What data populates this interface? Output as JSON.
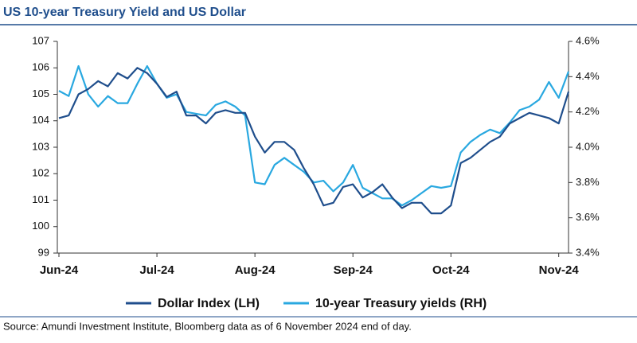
{
  "chart_data": {
    "type": "line",
    "title": "US 10-year Treasury Yield and US Dollar",
    "source": "Source: Amundi Investment Institute, Bloomberg data as of 6 November 2024 end of day.",
    "categories": [
      "Jun-24",
      null,
      null,
      null,
      null,
      null,
      null,
      null,
      null,
      null,
      "Jul-24",
      null,
      null,
      null,
      null,
      null,
      null,
      null,
      null,
      null,
      "Aug-24",
      null,
      null,
      null,
      null,
      null,
      null,
      null,
      null,
      null,
      "Sep-24",
      null,
      null,
      null,
      null,
      null,
      null,
      null,
      null,
      null,
      "Oct-24",
      null,
      null,
      null,
      null,
      null,
      null,
      null,
      null,
      null,
      null,
      "Nov-24",
      null
    ],
    "ylim": [
      99,
      107
    ],
    "yticks": [
      99,
      100,
      101,
      102,
      103,
      104,
      105,
      106,
      107
    ],
    "y2lim": [
      3.4,
      4.6
    ],
    "y2ticks": [
      {
        "value": 3.4,
        "label": "3.4%"
      },
      {
        "value": 3.6,
        "label": "3.6%"
      },
      {
        "value": 3.8,
        "label": "3.8%"
      },
      {
        "value": 4.0,
        "label": "4.0%"
      },
      {
        "value": 4.2,
        "label": "4.2%"
      },
      {
        "value": 4.4,
        "label": "4.4%"
      },
      {
        "value": 4.6,
        "label": "4.6%"
      }
    ],
    "series": [
      {
        "name": "Dollar Index (LH)",
        "color": "#1f4e8c",
        "axis": "y",
        "values": [
          104.1,
          104.2,
          105.0,
          105.2,
          105.5,
          105.3,
          105.8,
          105.6,
          106.0,
          105.8,
          105.4,
          104.9,
          105.1,
          104.2,
          104.2,
          103.9,
          104.3,
          104.4,
          104.3,
          104.3,
          103.4,
          102.8,
          103.2,
          103.2,
          102.9,
          102.2,
          101.6,
          100.8,
          100.9,
          101.5,
          101.6,
          101.1,
          101.3,
          101.6,
          101.1,
          100.7,
          100.9,
          100.9,
          100.5,
          100.5,
          100.8,
          102.4,
          102.6,
          102.9,
          103.2,
          103.4,
          103.9,
          104.1,
          104.3,
          104.2,
          104.1,
          103.9,
          105.1
        ]
      },
      {
        "name": "10-year Treasury yields (RH)",
        "color": "#29a8e0",
        "axis": "y2",
        "values": [
          4.32,
          4.29,
          4.46,
          4.3,
          4.23,
          4.29,
          4.25,
          4.25,
          4.36,
          4.46,
          4.36,
          4.28,
          4.3,
          4.2,
          4.19,
          4.18,
          4.24,
          4.26,
          4.23,
          4.18,
          3.8,
          3.79,
          3.9,
          3.94,
          3.9,
          3.86,
          3.8,
          3.81,
          3.75,
          3.8,
          3.9,
          3.77,
          3.74,
          3.71,
          3.71,
          3.67,
          3.7,
          3.74,
          3.78,
          3.77,
          3.78,
          3.97,
          4.03,
          4.07,
          4.1,
          4.08,
          4.14,
          4.21,
          4.23,
          4.27,
          4.37,
          4.28,
          4.43
        ]
      }
    ]
  }
}
